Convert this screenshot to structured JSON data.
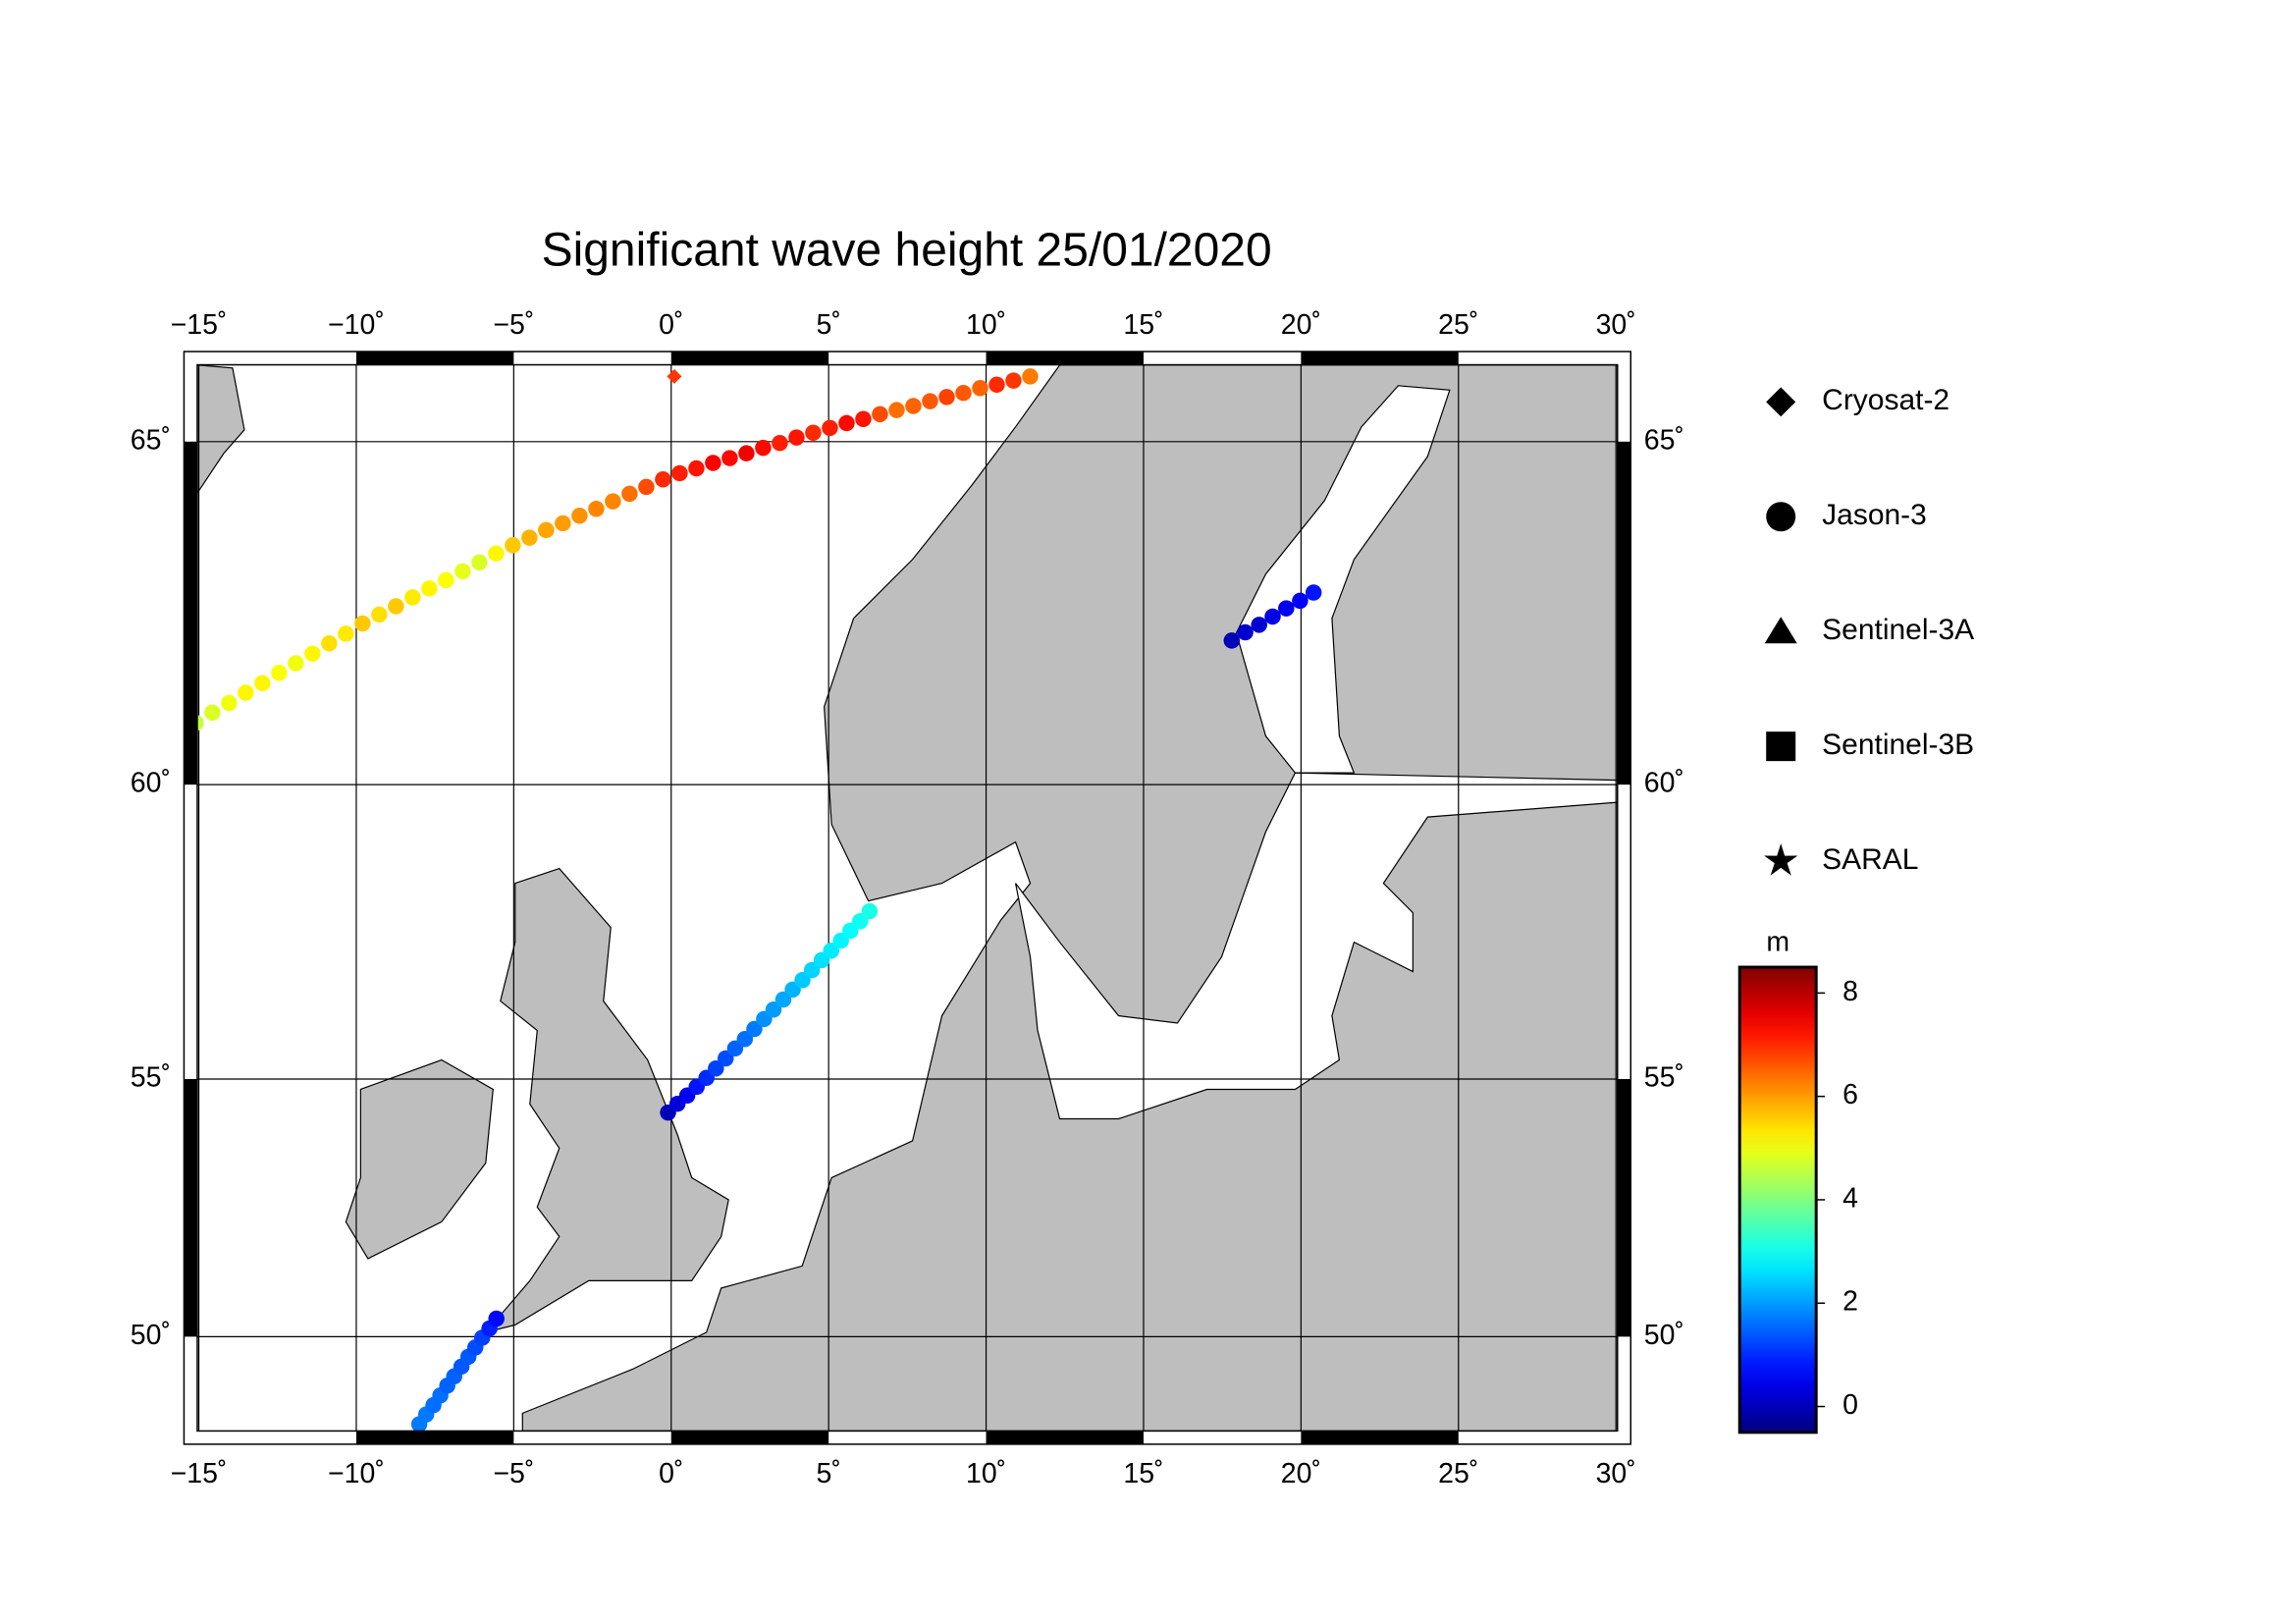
{
  "chart_data": {
    "type": "map",
    "title": "Significant wave height 25/01/2020",
    "xlim": [
      -15.05,
      30.05
    ],
    "ylim": [
      48.17,
      66.12
    ],
    "xticks": [
      {
        "value": -15,
        "label": "−15˚"
      },
      {
        "value": -10,
        "label": "−10˚"
      },
      {
        "value": -5,
        "label": "−5˚"
      },
      {
        "value": 0,
        "label": "0˚"
      },
      {
        "value": 5,
        "label": "5˚"
      },
      {
        "value": 10,
        "label": "10˚"
      },
      {
        "value": 15,
        "label": "15˚"
      },
      {
        "value": 20,
        "label": "20˚"
      },
      {
        "value": 25,
        "label": "25˚"
      },
      {
        "value": 30,
        "label": "30˚"
      }
    ],
    "yticks": [
      {
        "value": 50,
        "label": "50˚"
      },
      {
        "value": 55,
        "label": "55˚"
      },
      {
        "value": 60,
        "label": "60˚"
      },
      {
        "value": 65,
        "label": "65˚"
      }
    ],
    "grid": true,
    "land_color": "#bebebe",
    "colorbar": {
      "label": "m",
      "clim": [
        -0.5,
        8.5
      ],
      "ticks": [
        0,
        2,
        4,
        6,
        8
      ],
      "colormap": "jet"
    },
    "series": [
      {
        "name": "Cryosat-2",
        "marker": "diamond",
        "tracks": [
          {
            "lon": [
              0.1
            ],
            "lat": [
              65.95
            ],
            "values": [
              6.9
            ]
          }
        ]
      },
      {
        "name": "Jason-3",
        "marker": "circle",
        "tracks": [
          {
            "lon": [
              -15.1,
              -14.57,
              -14.04,
              -13.51,
              -12.98,
              -12.45,
              -11.92,
              -11.39,
              -10.86,
              -10.33,
              -9.8,
              -9.27,
              -8.74,
              -8.21,
              -7.68,
              -7.15,
              -6.62,
              -6.09,
              -5.56,
              -5.03,
              -4.5,
              -3.97,
              -3.44,
              -2.91,
              -2.38,
              -1.85,
              -1.32,
              -0.79,
              -0.26,
              0.27,
              0.8,
              1.33,
              1.86,
              2.39,
              2.92,
              3.45,
              3.98,
              4.51,
              5.04,
              5.57,
              6.1,
              6.63,
              7.16,
              7.69,
              8.22,
              8.75,
              9.28,
              9.81,
              10.34,
              10.87,
              11.4
            ],
            "lat": [
              60.9,
              61.05,
              61.19,
              61.34,
              61.48,
              61.63,
              61.77,
              61.91,
              62.06,
              62.2,
              62.35,
              62.48,
              62.6,
              62.73,
              62.86,
              62.98,
              63.11,
              63.24,
              63.37,
              63.49,
              63.6,
              63.71,
              63.81,
              63.92,
              64.02,
              64.13,
              64.24,
              64.34,
              64.45,
              64.54,
              64.61,
              64.69,
              64.76,
              64.83,
              64.91,
              64.98,
              65.06,
              65.13,
              65.2,
              65.27,
              65.33,
              65.4,
              65.46,
              65.52,
              65.59,
              65.65,
              65.71,
              65.78,
              65.83,
              65.89,
              65.95
            ],
            "values": [
              4.6,
              4.8,
              5.0,
              5.2,
              5.2,
              5.1,
              5.0,
              5.2,
              5.4,
              5.3,
              5.6,
              5.4,
              5.6,
              5.3,
              5.2,
              5.1,
              4.9,
              4.8,
              5.2,
              5.6,
              5.8,
              5.9,
              6.0,
              6.1,
              6.2,
              6.2,
              6.4,
              6.7,
              7.0,
              7.1,
              7.2,
              7.4,
              7.3,
              7.5,
              7.3,
              7.1,
              7.2,
              7.0,
              7.1,
              7.3,
              7.2,
              6.7,
              6.4,
              6.5,
              6.6,
              6.8,
              6.6,
              6.5,
              7.0,
              6.9,
              6.3
            ]
          },
          {
            "lon": [
              -0.1,
              0.2,
              0.51,
              0.81,
              1.12,
              1.42,
              1.73,
              2.03,
              2.34,
              2.64,
              2.95,
              3.25,
              3.56,
              3.86,
              4.17,
              4.47,
              4.78,
              5.08,
              5.39,
              5.69,
              6.0,
              6.3
            ],
            "lat": [
              54.35,
              54.52,
              54.68,
              54.85,
              55.02,
              55.18,
              55.35,
              55.52,
              55.68,
              55.85,
              56.02,
              56.18,
              56.35,
              56.52,
              56.68,
              56.85,
              57.02,
              57.18,
              57.35,
              57.52,
              57.68,
              57.85
            ],
            "values": [
              0.0,
              0.3,
              0.5,
              0.8,
              1.0,
              1.2,
              1.3,
              1.5,
              1.6,
              1.7,
              1.9,
              2.0,
              2.1,
              2.2,
              2.4,
              2.5,
              2.6,
              2.7,
              2.8,
              2.9,
              3.0,
              3.1
            ]
          },
          {
            "lon": [
              -8.0,
              -7.78,
              -7.55,
              -7.33,
              -7.11,
              -6.89,
              -6.66,
              -6.44,
              -6.22,
              -6.0,
              -5.77,
              -5.55
            ],
            "lat": [
              48.3,
              48.49,
              48.67,
              48.86,
              49.05,
              49.23,
              49.42,
              49.61,
              49.79,
              49.98,
              50.16,
              50.35
            ],
            "values": [
              1.7,
              1.7,
              1.6,
              1.6,
              1.5,
              1.5,
              1.4,
              1.4,
              1.3,
              1.2,
              0.9,
              0.7
            ]
          },
          {
            "lon": [
              17.8,
              18.23,
              18.67,
              19.1,
              19.53,
              19.97,
              20.4
            ],
            "lat": [
              62.1,
              62.22,
              62.33,
              62.45,
              62.57,
              62.68,
              62.8
            ],
            "values": [
              0.0,
              0.2,
              0.2,
              0.4,
              0.5,
              0.6,
              0.8
            ]
          }
        ]
      },
      {
        "name": "Sentinel-3A",
        "marker": "triangle",
        "tracks": []
      },
      {
        "name": "Sentinel-3B",
        "marker": "square",
        "tracks": []
      },
      {
        "name": "SARAL",
        "marker": "star",
        "tracks": []
      }
    ]
  }
}
